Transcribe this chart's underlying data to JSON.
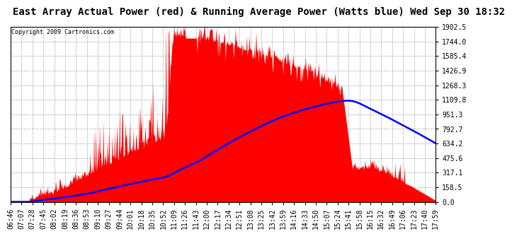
{
  "title": "East Array Actual Power (red) & Running Average Power (Watts blue) Wed Sep 30 18:32",
  "copyright": "Copyright 2009 Cartronics.com",
  "ylabel_right_values": [
    0.0,
    158.5,
    317.1,
    475.6,
    634.2,
    792.7,
    951.3,
    1109.8,
    1268.3,
    1426.9,
    1585.4,
    1744.0,
    1902.5
  ],
  "ymax": 1902.5,
  "ymin": 0.0,
  "x_labels": [
    "06:46",
    "07:07",
    "07:28",
    "07:45",
    "08:02",
    "08:19",
    "08:36",
    "08:53",
    "09:10",
    "09:27",
    "09:44",
    "10:01",
    "10:18",
    "10:35",
    "10:52",
    "11:09",
    "11:26",
    "11:43",
    "12:00",
    "12:17",
    "12:34",
    "12:51",
    "13:08",
    "13:25",
    "13:42",
    "13:59",
    "14:16",
    "14:33",
    "14:50",
    "15:07",
    "15:24",
    "15:41",
    "15:58",
    "16:15",
    "16:32",
    "16:49",
    "17:06",
    "17:23",
    "17:40",
    "17:59"
  ],
  "background_color": "#ffffff",
  "plot_bg_color": "#ffffff",
  "grid_color": "#aaaaaa",
  "bar_color": "#ff0000",
  "line_color": "#0000ff",
  "title_fontsize": 10,
  "tick_fontsize": 7,
  "title_font": "monospace",
  "tick_font": "monospace"
}
